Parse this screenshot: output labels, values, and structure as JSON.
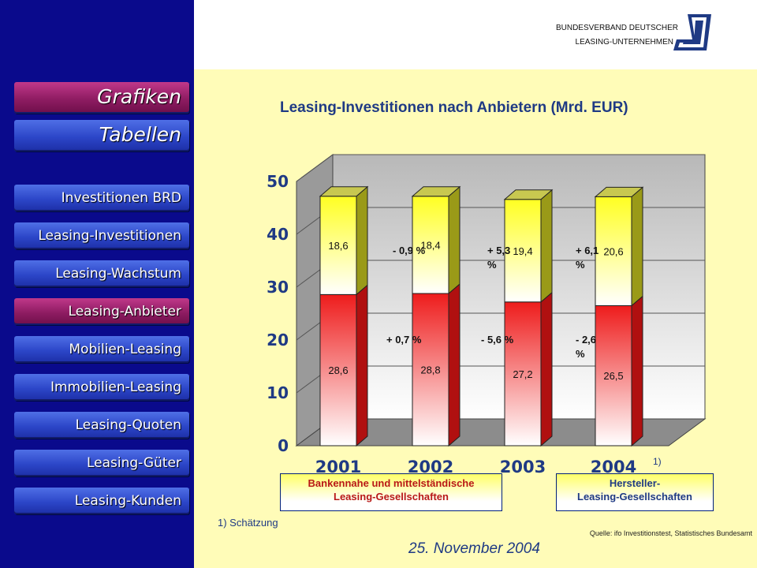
{
  "header": {
    "org_line1": "BUNDESVERBAND DEUTSCHER",
    "org_line2": "LEASING-UNTERNEHMEN"
  },
  "sidebar": {
    "items": [
      {
        "label": "Grafiken",
        "active": true
      },
      {
        "label": "Tabellen",
        "active": false
      },
      {
        "label": "Investitionen BRD",
        "active": false
      },
      {
        "label": "Leasing-Investitionen",
        "active": false
      },
      {
        "label": "Leasing-Wachstum",
        "active": false
      },
      {
        "label": "Leasing-Anbieter",
        "active": true
      },
      {
        "label": "Mobilien-Leasing",
        "active": false
      },
      {
        "label": "Immobilien-Leasing",
        "active": false
      },
      {
        "label": "Leasing-Quoten",
        "active": false
      },
      {
        "label": "Leasing-Güter",
        "active": false
      },
      {
        "label": "Leasing-Kunden",
        "active": false
      }
    ]
  },
  "colors": {
    "sidebar_bg": "#0a0a8c",
    "content_bg": "#fffcb8",
    "title_blue": "#1f3a84",
    "bank_red": "#ee1c1c",
    "manufacturer_yellow": "#ffff22"
  },
  "chart_data": {
    "type": "bar",
    "stacked": true,
    "three_d": true,
    "title": "Leasing-Investitionen nach Anbietern (Mrd. EUR)",
    "categories": [
      "2001",
      "2002",
      "2003",
      "2004"
    ],
    "category_note": "1)",
    "ylim": [
      0,
      50
    ],
    "yticks": [
      "0",
      "10",
      "20",
      "30",
      "40",
      "50"
    ],
    "grid": true,
    "series": [
      {
        "name": "Bankennahe und mittelständische Leasing-Gesellschaften",
        "color": "#ee1c1c",
        "values": [
          28.6,
          28.8,
          27.2,
          26.5
        ],
        "labels": [
          "28,6",
          "28,8",
          "27,2",
          "26,5"
        ]
      },
      {
        "name": "Hersteller-Leasing-Gesellschaften",
        "color": "#ffff22",
        "values": [
          18.6,
          18.4,
          19.4,
          20.6
        ],
        "labels": [
          "18,6",
          "18,4",
          "19,4",
          "20,6"
        ]
      }
    ],
    "change_labels": {
      "bank": [
        "+ 0,7 %",
        "- 5,6 %",
        "- 2,6 %"
      ],
      "manufacturer": [
        "- 0,9 %",
        "+ 5,3 %",
        "+ 6,1 %"
      ]
    },
    "legend": {
      "bank": [
        "Bankennahe und mittelständische",
        "Leasing-Gesellschaften"
      ],
      "manufacturer": [
        "Hersteller-",
        "Leasing-Gesellschaften"
      ]
    }
  },
  "footnote": "1) Schätzung",
  "source": "Quelle: ifo Investitionstest, Statistisches Bundesamt",
  "date": "25. November 2004"
}
